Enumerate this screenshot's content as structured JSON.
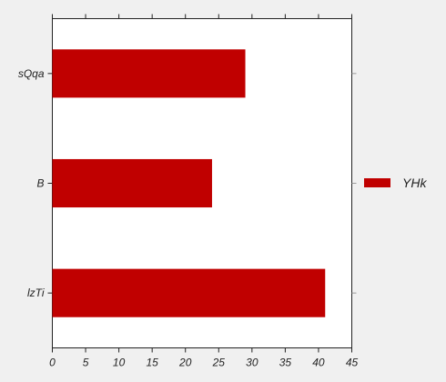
{
  "chart_data": {
    "type": "bar",
    "orientation": "horizontal",
    "categories": [
      "sQqa",
      "B",
      "lzTi"
    ],
    "series": [
      {
        "name": "YHk",
        "values": [
          29,
          24,
          41
        ],
        "color": "#c00000"
      }
    ],
    "xlim": [
      0,
      45
    ],
    "xticks": [
      0,
      5,
      10,
      15,
      20,
      25,
      30,
      35,
      40,
      45
    ],
    "xlabel": "",
    "ylabel": "",
    "title": "",
    "grid": false,
    "legend": {
      "placement": "right",
      "entries": [
        "YHk"
      ]
    },
    "colors": {
      "plot_background": "#ffffff",
      "page_background": "#f0f0f0",
      "bar": "#c00000",
      "axis": "#222222"
    }
  }
}
